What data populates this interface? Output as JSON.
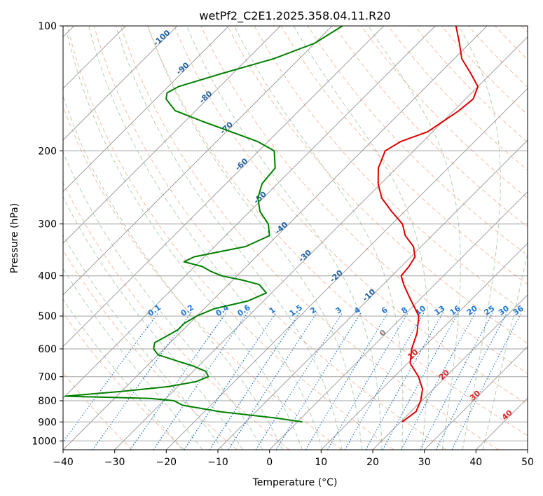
{
  "chart_data": {
    "type": "line",
    "title": "wetPf2_C2E1.2025.358.04.11.R20",
    "xlabel": "Temperature (°C)",
    "ylabel": "Pressure (hPa)",
    "xlim": [
      -40,
      50
    ],
    "ylim": [
      1050,
      100
    ],
    "y_scale": "log",
    "x_ticks": [
      "−40",
      "−30",
      "−20",
      "−10",
      "0",
      "10",
      "20",
      "30",
      "40",
      "50"
    ],
    "y_ticks": [
      "100",
      "200",
      "300",
      "400",
      "500",
      "600",
      "700",
      "800",
      "900",
      "1000"
    ],
    "grid": true,
    "colors": {
      "temperature": "#e00000",
      "dewpoint": "#008000",
      "isotherm": "#a0a0a0",
      "dry_adiabat": "#f4a582",
      "moist_adiabat": "#8fbc8f",
      "mixing_ratio": "#1f77d4",
      "isotherm_label_cold": "#1f5fa0",
      "isotherm_label_warm": "#d62728",
      "isotherm_label_zero": "#808080"
    },
    "series": [
      {
        "key": "temperature",
        "pressure": [
          900,
          850,
          800,
          750,
          700,
          650,
          600,
          550,
          500,
          450,
          420,
          400,
          380,
          360,
          340,
          320,
          300,
          280,
          260,
          240,
          220,
          200,
          190,
          180,
          170,
          160,
          150,
          140,
          130,
          120,
          110,
          100
        ],
        "values": [
          20.3,
          21.0,
          19.8,
          17.9,
          14.7,
          10.5,
          8.0,
          6.0,
          3.0,
          -2.5,
          -6.0,
          -8.2,
          -8.5,
          -9.2,
          -11.5,
          -15.2,
          -18.0,
          -22.5,
          -27.0,
          -30.5,
          -33.5,
          -35.5,
          -34.3,
          -31.0,
          -30.0,
          -29.0,
          -28.5,
          -30.0,
          -34.0,
          -38.5,
          -42.0,
          -46.0
        ]
      },
      {
        "key": "dewpoint",
        "pressure": [
          900,
          880,
          850,
          820,
          800,
          790,
          780,
          760,
          740,
          720,
          700,
          680,
          660,
          640,
          620,
          600,
          580,
          560,
          540,
          520,
          500,
          480,
          460,
          440,
          420,
          410,
          400,
          390,
          380,
          370,
          360,
          340,
          320,
          300,
          280,
          260,
          240,
          220,
          200,
          190,
          180,
          170,
          160,
          150,
          145,
          140,
          130,
          120,
          110,
          100
        ],
        "values": [
          1.0,
          -5.0,
          -17.0,
          -25.5,
          -28.0,
          -33.0,
          -50.0,
          -40.0,
          -32.0,
          -27.5,
          -26.0,
          -27.5,
          -31.0,
          -35.5,
          -40.0,
          -42.0,
          -43.0,
          -42.0,
          -41.0,
          -41.0,
          -40.0,
          -38.0,
          -33.0,
          -31.0,
          -34.0,
          -38.0,
          -43.0,
          -46.0,
          -48.5,
          -53.0,
          -52.0,
          -44.0,
          -41.5,
          -44.0,
          -48.0,
          -51.0,
          -53.0,
          -53.5,
          -57.0,
          -62.0,
          -69.0,
          -76.5,
          -84.0,
          -88.0,
          -89.0,
          -88.0,
          -82.0,
          -75.0,
          -70.0,
          -68.0
        ]
      }
    ],
    "isotherm_labels": [
      "-100",
      "-90",
      "-80",
      "-70",
      "-60",
      "-50",
      "-40",
      "-30",
      "-20",
      "-10",
      "0",
      "10",
      "20",
      "30",
      "40"
    ],
    "mixing_ratio_labels": [
      "0.1",
      "0.2",
      "0.4",
      "0.6",
      "1",
      "1.5",
      "2",
      "3",
      "4",
      "6",
      "8",
      "10",
      "13",
      "16",
      "20",
      "25",
      "30",
      "36"
    ]
  }
}
